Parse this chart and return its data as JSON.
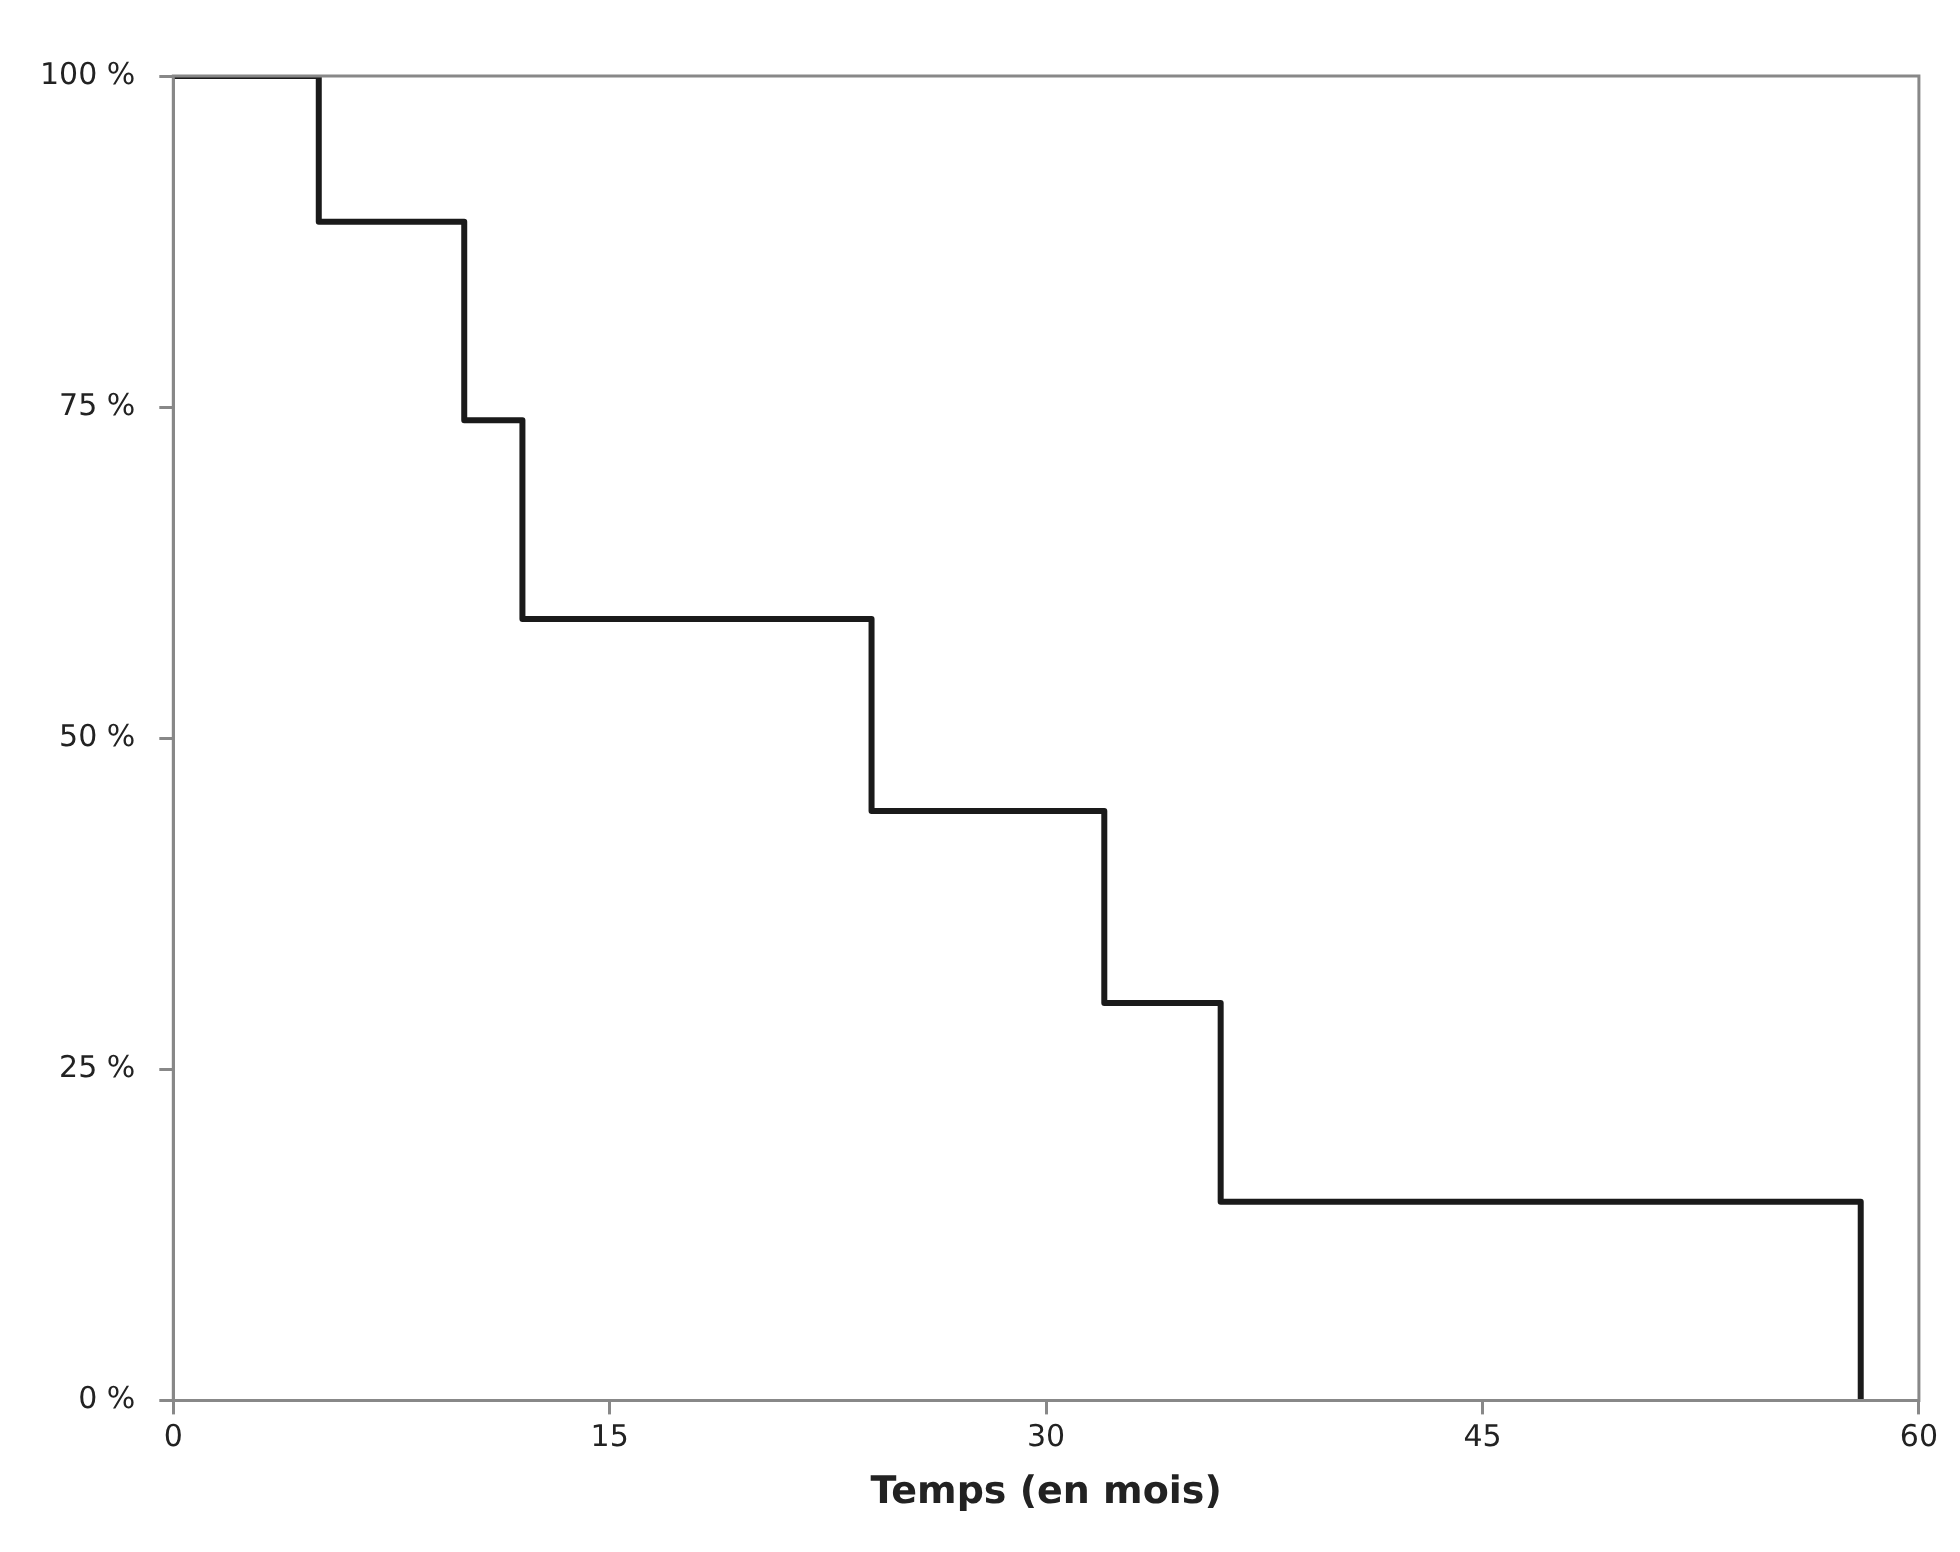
{
  "chart_data": {
    "type": "step",
    "xlabel": "Temps (en mois)",
    "x": [
      0,
      5,
      10,
      12,
      24,
      32,
      36,
      58
    ],
    "series": [
      {
        "color": "#1a1a1a",
        "values": [
          100,
          89,
          74,
          59,
          44.5,
          30,
          15,
          0
        ]
      }
    ],
    "xlim": [
      0,
      60
    ],
    "xticks": [
      0,
      15,
      30,
      45,
      60
    ],
    "ylim": [
      0,
      100
    ],
    "yticks": [
      {
        "value": 0,
        "label": "0 %"
      },
      {
        "value": 25,
        "label": "25 %"
      },
      {
        "value": 50,
        "label": "50 %"
      },
      {
        "value": 75,
        "label": "75 %"
      },
      {
        "value": 100,
        "label": "100 %"
      }
    ],
    "legend": false
  }
}
